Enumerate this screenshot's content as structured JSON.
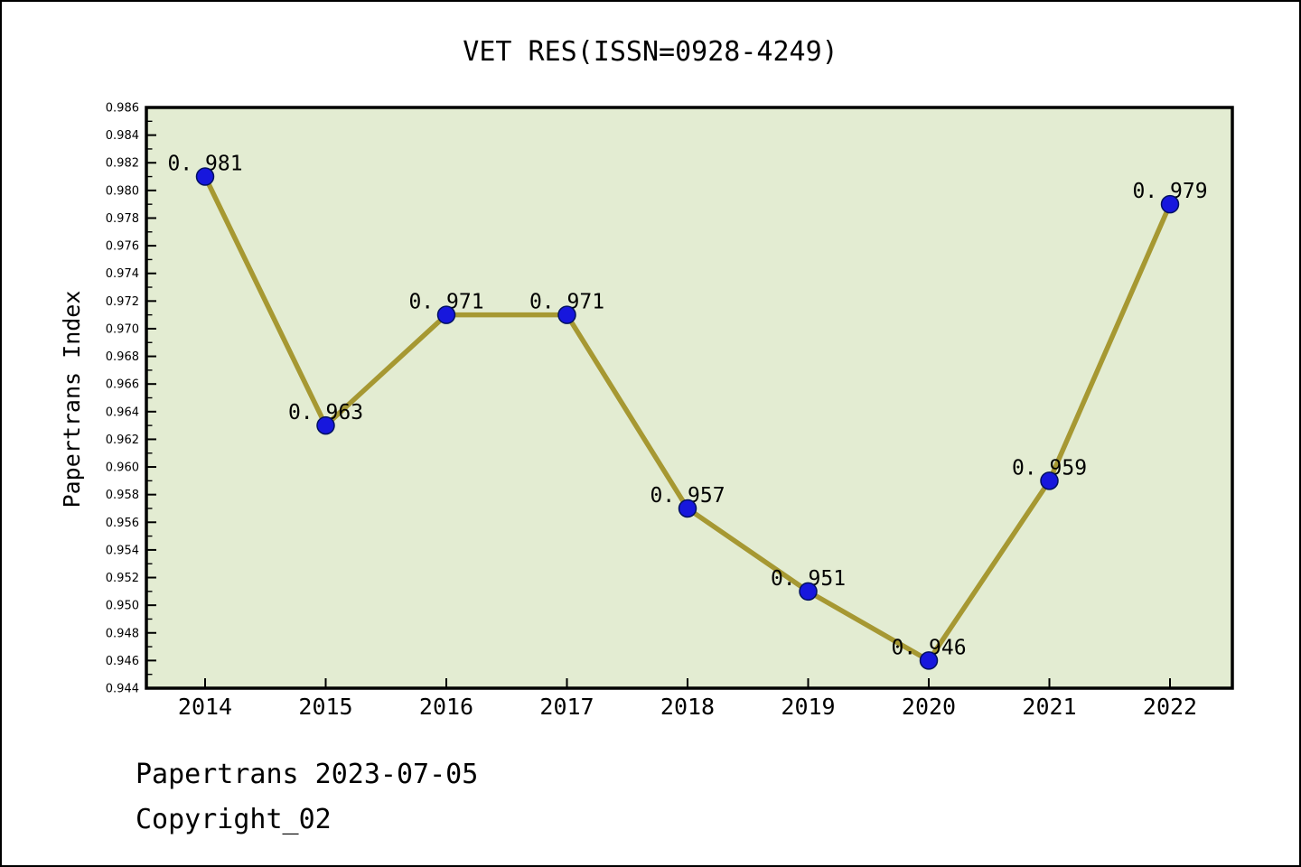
{
  "page": {
    "title": "VET RES(ISSN=0928-4249)"
  },
  "footer": {
    "line1": "Papertrans 2023-07-05",
    "line2": "Copyright_02"
  },
  "chart_data": {
    "type": "line",
    "title": "VET RES(ISSN=0928-4249)",
    "xlabel": "",
    "ylabel": "Papertrans Index",
    "categories": [
      "2014",
      "2015",
      "2016",
      "2017",
      "2018",
      "2019",
      "2020",
      "2021",
      "2022"
    ],
    "values": [
      0.981,
      0.963,
      0.971,
      0.971,
      0.957,
      0.951,
      0.946,
      0.959,
      0.979
    ],
    "point_labels": [
      "0.981",
      "0.963",
      "0.971",
      "0.971",
      "0.957",
      "0.951",
      "0.946",
      "0.959",
      "0.979"
    ],
    "ylim": [
      0.944,
      0.986
    ],
    "y_major_step": 0.002,
    "y_minor_step": 0.001,
    "y_tick_decimals": 3,
    "grid": false,
    "legend": "none",
    "colors": {
      "line": "#a69832",
      "marker_fill": "#1717dd",
      "marker_edge": "#001060",
      "plot_bg": "#e3ecd2",
      "axis": "#000000",
      "text": "#000000"
    }
  }
}
